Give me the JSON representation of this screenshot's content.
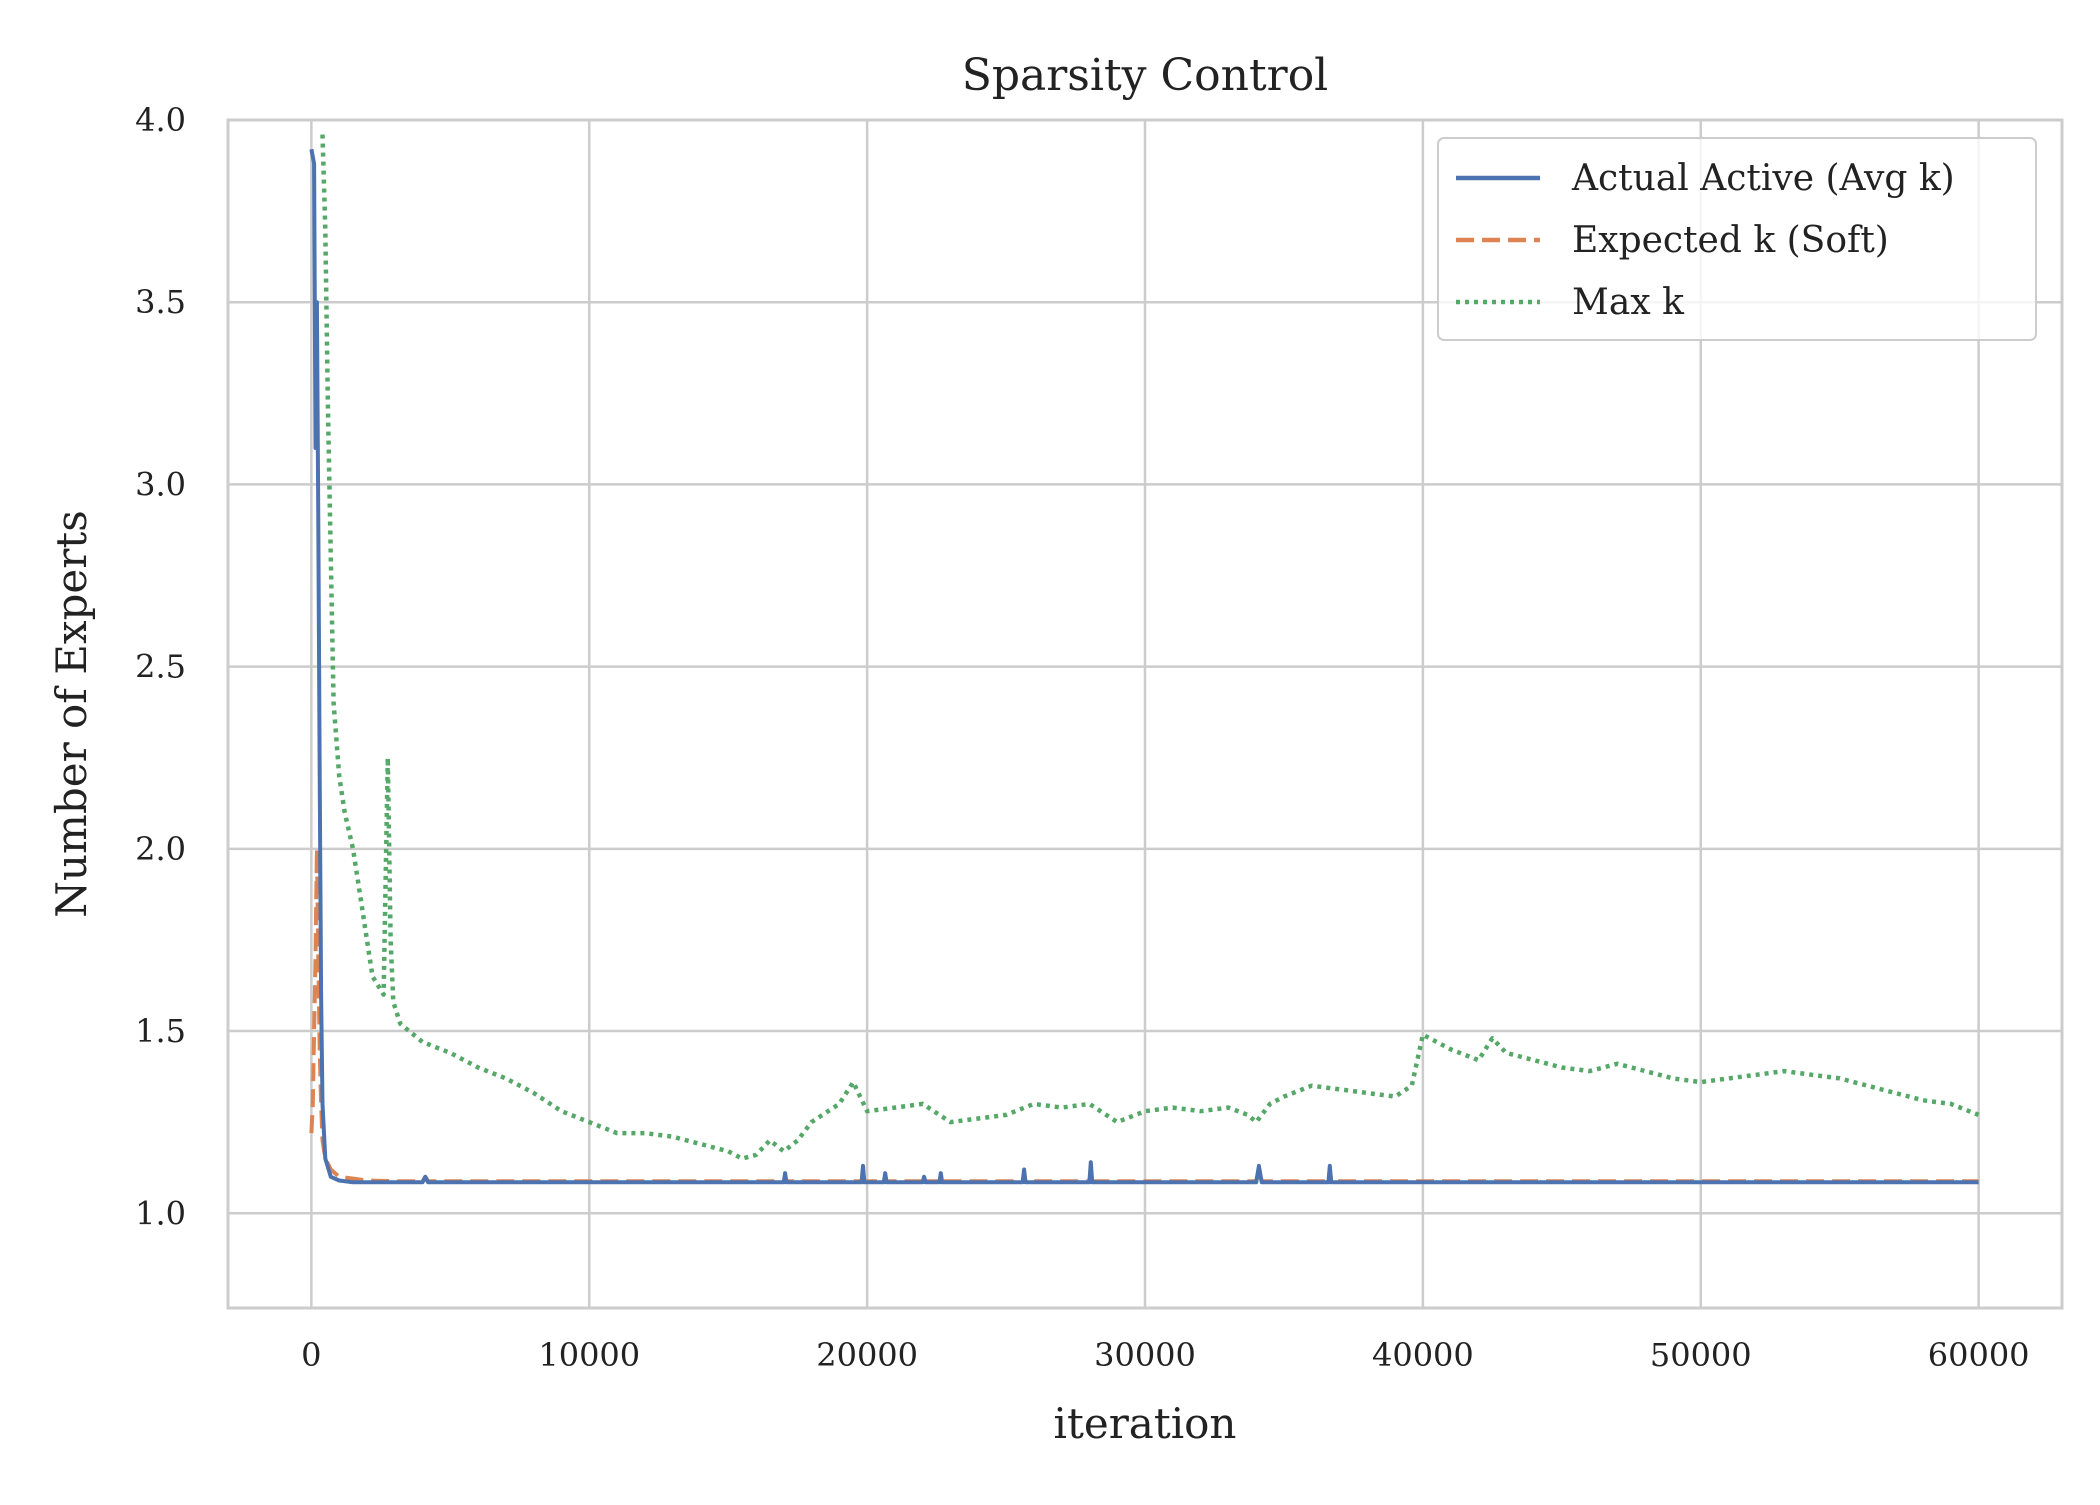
{
  "chart_data": {
    "type": "line",
    "title": "Sparsity Control",
    "xlabel": "iteration",
    "ylabel": "Number of Experts",
    "xlim": [
      -3000,
      63000
    ],
    "ylim": [
      0.74,
      4.0
    ],
    "x_ticks": [
      0,
      10000,
      20000,
      30000,
      40000,
      50000,
      60000
    ],
    "x_tick_labels": [
      "0",
      "10000",
      "20000",
      "30000",
      "40000",
      "50000",
      "60000"
    ],
    "y_ticks": [
      1.0,
      1.5,
      2.0,
      2.5,
      3.0,
      3.5,
      4.0
    ],
    "y_tick_labels": [
      "1.0",
      "1.5",
      "2.0",
      "2.5",
      "3.0",
      "3.5",
      "4.0"
    ],
    "grid": true,
    "legend_position": "top-right",
    "series": [
      {
        "name": "Actual Active (Avg k)",
        "color": "#4c72b0",
        "style": "solid",
        "x": [
          0,
          100,
          150,
          200,
          250,
          300,
          350,
          400,
          500,
          700,
          1000,
          1500,
          2000,
          3000,
          4000,
          4100,
          4200,
          5000,
          10000,
          17000,
          17050,
          17100,
          19800,
          19850,
          19900,
          20600,
          20650,
          20700,
          22000,
          22050,
          22100,
          22600,
          22650,
          22700,
          25600,
          25650,
          25700,
          28000,
          28050,
          28100,
          34000,
          34100,
          34200,
          36600,
          36650,
          36700,
          38000,
          40000,
          50000,
          60000
        ],
        "y": [
          3.92,
          3.88,
          3.1,
          3.5,
          2.9,
          2.2,
          1.6,
          1.3,
          1.15,
          1.1,
          1.09,
          1.085,
          1.085,
          1.085,
          1.085,
          1.1,
          1.085,
          1.085,
          1.085,
          1.085,
          1.11,
          1.085,
          1.085,
          1.13,
          1.085,
          1.085,
          1.11,
          1.085,
          1.085,
          1.1,
          1.085,
          1.085,
          1.11,
          1.085,
          1.085,
          1.12,
          1.085,
          1.085,
          1.14,
          1.085,
          1.085,
          1.13,
          1.085,
          1.085,
          1.13,
          1.085,
          1.085,
          1.085,
          1.085,
          1.085
        ]
      },
      {
        "name": "Expected k (Soft)",
        "color": "#dd8452",
        "style": "dashed",
        "x": [
          0,
          50,
          100,
          150,
          200,
          250,
          300,
          350,
          400,
          500,
          700,
          1000,
          1500,
          2000,
          3000,
          4000,
          4100,
          4200,
          10000,
          17000,
          17050,
          17100,
          19800,
          19850,
          19900,
          20600,
          20650,
          20700,
          22000,
          22050,
          22100,
          22600,
          22650,
          22700,
          25600,
          25650,
          25700,
          28000,
          28050,
          28100,
          34000,
          34100,
          34200,
          36600,
          36650,
          36700,
          40000,
          50000,
          60000
        ],
        "y": [
          1.22,
          1.3,
          1.5,
          1.7,
          2.0,
          1.7,
          1.45,
          1.3,
          1.2,
          1.15,
          1.12,
          1.1,
          1.095,
          1.09,
          1.088,
          1.088,
          1.1,
          1.088,
          1.088,
          1.088,
          1.1,
          1.088,
          1.088,
          1.12,
          1.088,
          1.088,
          1.1,
          1.088,
          1.088,
          1.1,
          1.088,
          1.088,
          1.1,
          1.088,
          1.088,
          1.11,
          1.088,
          1.088,
          1.12,
          1.088,
          1.088,
          1.12,
          1.088,
          1.088,
          1.12,
          1.088,
          1.088,
          1.088,
          1.088
        ]
      },
      {
        "name": "Max k",
        "color": "#55a868",
        "style": "dotted",
        "x": [
          400,
          500,
          600,
          700,
          800,
          1000,
          1200,
          1500,
          1800,
          2200,
          2600,
          2750,
          2850,
          2950,
          3200,
          4000,
          5000,
          6000,
          7000,
          8000,
          9000,
          10000,
          11000,
          12000,
          13000,
          14000,
          15000,
          15500,
          16000,
          16500,
          17000,
          17500,
          18000,
          19000,
          19500,
          20000,
          21000,
          22000,
          23000,
          24000,
          25000,
          26000,
          27000,
          28000,
          29000,
          30000,
          31000,
          32000,
          33000,
          33700,
          34000,
          34500,
          35000,
          36000,
          37000,
          38000,
          39000,
          39600,
          40000,
          41000,
          42000,
          42500,
          43000,
          44000,
          45000,
          46000,
          47000,
          48000,
          49000,
          50000,
          51000,
          52000,
          53000,
          54000,
          55000,
          56000,
          57000,
          58000,
          59000,
          60000
        ],
        "y": [
          3.96,
          3.7,
          3.2,
          2.8,
          2.4,
          2.2,
          2.1,
          2.0,
          1.85,
          1.65,
          1.6,
          2.25,
          1.75,
          1.58,
          1.52,
          1.47,
          1.44,
          1.4,
          1.37,
          1.33,
          1.28,
          1.25,
          1.22,
          1.22,
          1.21,
          1.19,
          1.17,
          1.15,
          1.16,
          1.2,
          1.17,
          1.2,
          1.25,
          1.3,
          1.36,
          1.28,
          1.29,
          1.3,
          1.25,
          1.26,
          1.27,
          1.3,
          1.29,
          1.3,
          1.25,
          1.28,
          1.29,
          1.28,
          1.29,
          1.27,
          1.25,
          1.3,
          1.32,
          1.35,
          1.34,
          1.33,
          1.32,
          1.35,
          1.49,
          1.45,
          1.42,
          1.48,
          1.44,
          1.42,
          1.4,
          1.39,
          1.41,
          1.39,
          1.37,
          1.36,
          1.37,
          1.38,
          1.39,
          1.38,
          1.37,
          1.35,
          1.33,
          1.31,
          1.3,
          1.27
        ]
      }
    ]
  }
}
